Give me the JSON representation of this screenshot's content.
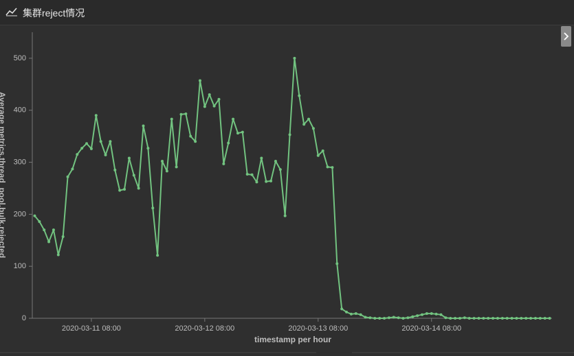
{
  "chart_data": {
    "type": "line",
    "title": "集群reject情况",
    "x_label": "timestamp per hour",
    "y_label": "Average metrics.thread_pool.bulk.rejected",
    "color": "#72c380",
    "x": [
      "2020-03-10 20:00",
      "2020-03-10 21:00",
      "2020-03-10 22:00",
      "2020-03-10 23:00",
      "2020-03-11 00:00",
      "2020-03-11 01:00",
      "2020-03-11 02:00",
      "2020-03-11 03:00",
      "2020-03-11 04:00",
      "2020-03-11 05:00",
      "2020-03-11 06:00",
      "2020-03-11 07:00",
      "2020-03-11 08:00",
      "2020-03-11 09:00",
      "2020-03-11 10:00",
      "2020-03-11 11:00",
      "2020-03-11 12:00",
      "2020-03-11 13:00",
      "2020-03-11 14:00",
      "2020-03-11 15:00",
      "2020-03-11 16:00",
      "2020-03-11 17:00",
      "2020-03-11 18:00",
      "2020-03-11 19:00",
      "2020-03-11 20:00",
      "2020-03-11 21:00",
      "2020-03-11 22:00",
      "2020-03-11 23:00",
      "2020-03-12 00:00",
      "2020-03-12 01:00",
      "2020-03-12 02:00",
      "2020-03-12 03:00",
      "2020-03-12 04:00",
      "2020-03-12 05:00",
      "2020-03-12 06:00",
      "2020-03-12 07:00",
      "2020-03-12 08:00",
      "2020-03-12 09:00",
      "2020-03-12 10:00",
      "2020-03-12 11:00",
      "2020-03-12 12:00",
      "2020-03-12 13:00",
      "2020-03-12 14:00",
      "2020-03-12 15:00",
      "2020-03-12 16:00",
      "2020-03-12 17:00",
      "2020-03-12 18:00",
      "2020-03-12 19:00",
      "2020-03-12 20:00",
      "2020-03-12 21:00",
      "2020-03-12 22:00",
      "2020-03-12 23:00",
      "2020-03-13 00:00",
      "2020-03-13 01:00",
      "2020-03-13 02:00",
      "2020-03-13 03:00",
      "2020-03-13 04:00",
      "2020-03-13 05:00",
      "2020-03-13 06:00",
      "2020-03-13 07:00",
      "2020-03-13 08:00",
      "2020-03-13 09:00",
      "2020-03-13 10:00",
      "2020-03-13 11:00",
      "2020-03-13 12:00",
      "2020-03-13 13:00",
      "2020-03-13 14:00",
      "2020-03-13 15:00",
      "2020-03-13 16:00",
      "2020-03-13 17:00",
      "2020-03-13 18:00",
      "2020-03-13 19:00",
      "2020-03-13 20:00",
      "2020-03-13 21:00",
      "2020-03-13 22:00",
      "2020-03-13 23:00",
      "2020-03-14 00:00",
      "2020-03-14 01:00",
      "2020-03-14 02:00",
      "2020-03-14 03:00",
      "2020-03-14 04:00",
      "2020-03-14 05:00",
      "2020-03-14 06:00",
      "2020-03-14 07:00",
      "2020-03-14 08:00",
      "2020-03-14 09:00",
      "2020-03-14 10:00",
      "2020-03-14 11:00",
      "2020-03-14 12:00",
      "2020-03-14 13:00",
      "2020-03-14 14:00",
      "2020-03-14 15:00",
      "2020-03-14 16:00",
      "2020-03-14 17:00",
      "2020-03-14 18:00",
      "2020-03-14 19:00",
      "2020-03-14 20:00",
      "2020-03-14 21:00",
      "2020-03-14 22:00",
      "2020-03-14 23:00",
      "2020-03-15 00:00",
      "2020-03-15 01:00",
      "2020-03-15 02:00",
      "2020-03-15 03:00",
      "2020-03-15 04:00",
      "2020-03-15 05:00",
      "2020-03-15 06:00",
      "2020-03-15 07:00",
      "2020-03-15 08:00",
      "2020-03-15 09:00"
    ],
    "values": [
      197,
      186,
      170,
      147,
      170,
      122,
      157,
      272,
      287,
      315,
      327,
      336,
      326,
      390,
      340,
      314,
      340,
      285,
      246,
      248,
      308,
      275,
      250,
      370,
      327,
      212,
      121,
      302,
      283,
      383,
      291,
      392,
      393,
      350,
      340,
      457,
      407,
      430,
      408,
      421,
      297,
      337,
      383,
      356,
      358,
      277,
      276,
      262,
      308,
      263,
      264,
      302,
      286,
      197,
      353,
      500,
      428,
      373,
      383,
      365,
      313,
      322,
      291,
      290,
      105,
      18,
      12,
      8,
      9,
      7,
      2,
      1,
      0,
      0,
      0,
      1,
      2,
      1,
      0,
      1,
      3,
      5,
      7,
      9,
      9,
      8,
      7,
      1,
      0,
      0,
      0,
      1,
      0,
      0,
      0,
      0,
      0,
      0,
      0,
      0,
      0,
      0,
      0,
      0,
      0,
      0,
      0,
      0,
      0,
      0
    ],
    "xlim": [
      "2020-03-10 19:30",
      "2020-03-15 09:30"
    ],
    "xticks": [
      "2020-03-11 08:00",
      "2020-03-12 08:00",
      "2020-03-13 08:00",
      "2020-03-14 08:00"
    ],
    "ylim": [
      0,
      550
    ],
    "yticks": [
      0,
      100,
      200,
      300,
      400,
      500
    ]
  }
}
